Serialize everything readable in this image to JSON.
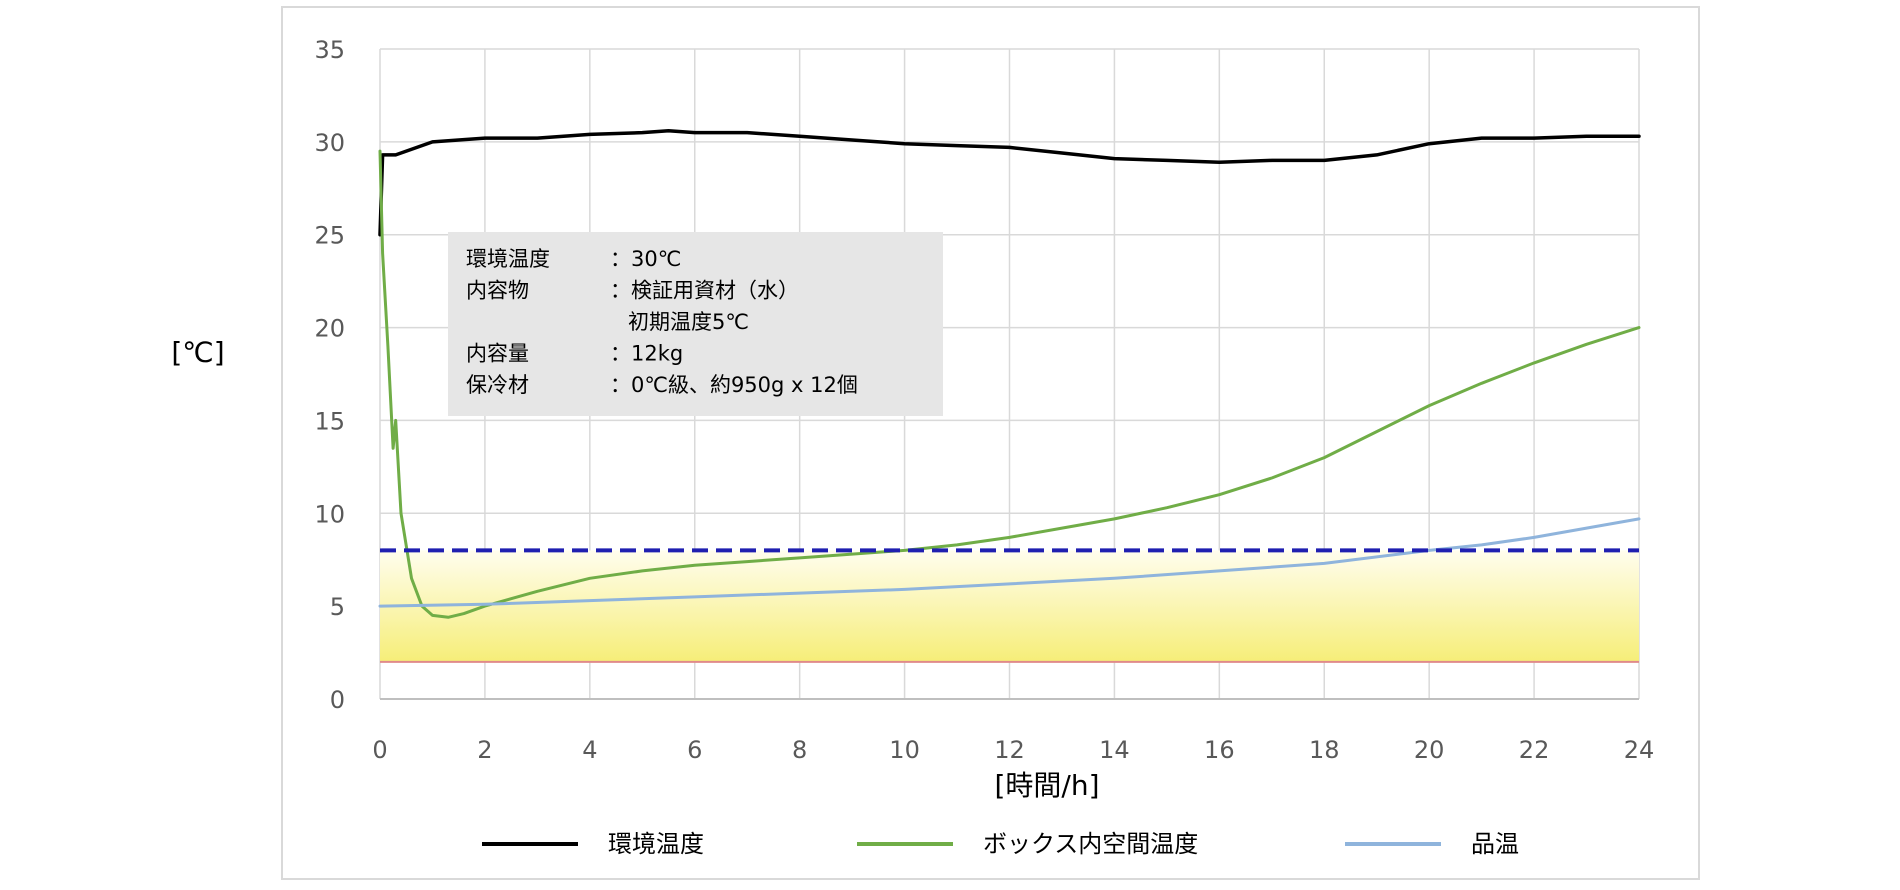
{
  "chart_data": {
    "type": "line",
    "xlabel": "[時間/h]",
    "ylabel": "[℃]",
    "xlim": [
      0,
      24
    ],
    "ylim": [
      0,
      35
    ],
    "xticks": [
      "0",
      "2",
      "4",
      "6",
      "8",
      "10",
      "12",
      "14",
      "16",
      "18",
      "20",
      "22",
      "24"
    ],
    "yticks": [
      "0",
      "5",
      "10",
      "15",
      "20",
      "25",
      "30",
      "35"
    ],
    "grid": true,
    "legend_position": "bottom",
    "reference_lines": [
      {
        "value": 8,
        "style": "dashed",
        "color": "#1f1fb0"
      },
      {
        "value": 2,
        "style": "solid",
        "color": "#e08a8a"
      }
    ],
    "band": {
      "from": 2,
      "to": 8,
      "color_top": "#fffbe0",
      "color_bottom": "#f8f07a"
    },
    "info_box": [
      {
        "label": "環境温度",
        "value": "：30℃"
      },
      {
        "label": "内容物",
        "value": "：検証用資材（水）"
      },
      {
        "label": "",
        "value": "初期温度5℃"
      },
      {
        "label": "内容量",
        "value": "：12kg"
      },
      {
        "label": "保冷材",
        "value": "：0℃級、約950g x 12個"
      }
    ],
    "series": [
      {
        "name": "環境温度",
        "color": "#000000",
        "x": [
          0,
          0.05,
          0.3,
          1,
          2,
          3,
          4,
          5,
          5.5,
          6,
          7,
          8,
          9,
          10,
          11,
          12,
          13,
          14,
          15,
          16,
          17,
          18,
          19,
          20,
          21,
          22,
          23,
          24
        ],
        "y": [
          25,
          29.3,
          29.3,
          30.0,
          30.2,
          30.2,
          30.4,
          30.5,
          30.6,
          30.5,
          30.5,
          30.3,
          30.1,
          29.9,
          29.8,
          29.7,
          29.4,
          29.1,
          29.0,
          28.9,
          29.0,
          29.0,
          29.3,
          29.9,
          30.2,
          30.2,
          30.3,
          30.3
        ]
      },
      {
        "name": "ボックス内空間温度",
        "color": "#70ad47",
        "x": [
          0,
          0.05,
          0.15,
          0.25,
          0.3,
          0.4,
          0.6,
          0.8,
          1.0,
          1.3,
          1.6,
          2,
          3,
          4,
          5,
          6,
          7,
          8,
          9,
          10,
          11,
          12,
          13,
          14,
          15,
          16,
          17,
          18,
          19,
          20,
          21,
          22,
          23,
          24
        ],
        "y": [
          29.5,
          24,
          19,
          13.5,
          15,
          10,
          6.5,
          5,
          4.5,
          4.4,
          4.6,
          5.0,
          5.8,
          6.5,
          6.9,
          7.2,
          7.4,
          7.6,
          7.8,
          8.0,
          8.3,
          8.7,
          9.2,
          9.7,
          10.3,
          11.0,
          11.9,
          13.0,
          14.4,
          15.8,
          17.0,
          18.1,
          19.1,
          20.0
        ]
      },
      {
        "name": "品温",
        "color": "#8fb4dc",
        "x": [
          0,
          2,
          4,
          6,
          8,
          10,
          12,
          14,
          16,
          18,
          20,
          21,
          22,
          23,
          24
        ],
        "y": [
          5.0,
          5.1,
          5.3,
          5.5,
          5.7,
          5.9,
          6.2,
          6.5,
          6.9,
          7.3,
          8.0,
          8.3,
          8.7,
          9.2,
          9.7
        ]
      }
    ]
  }
}
